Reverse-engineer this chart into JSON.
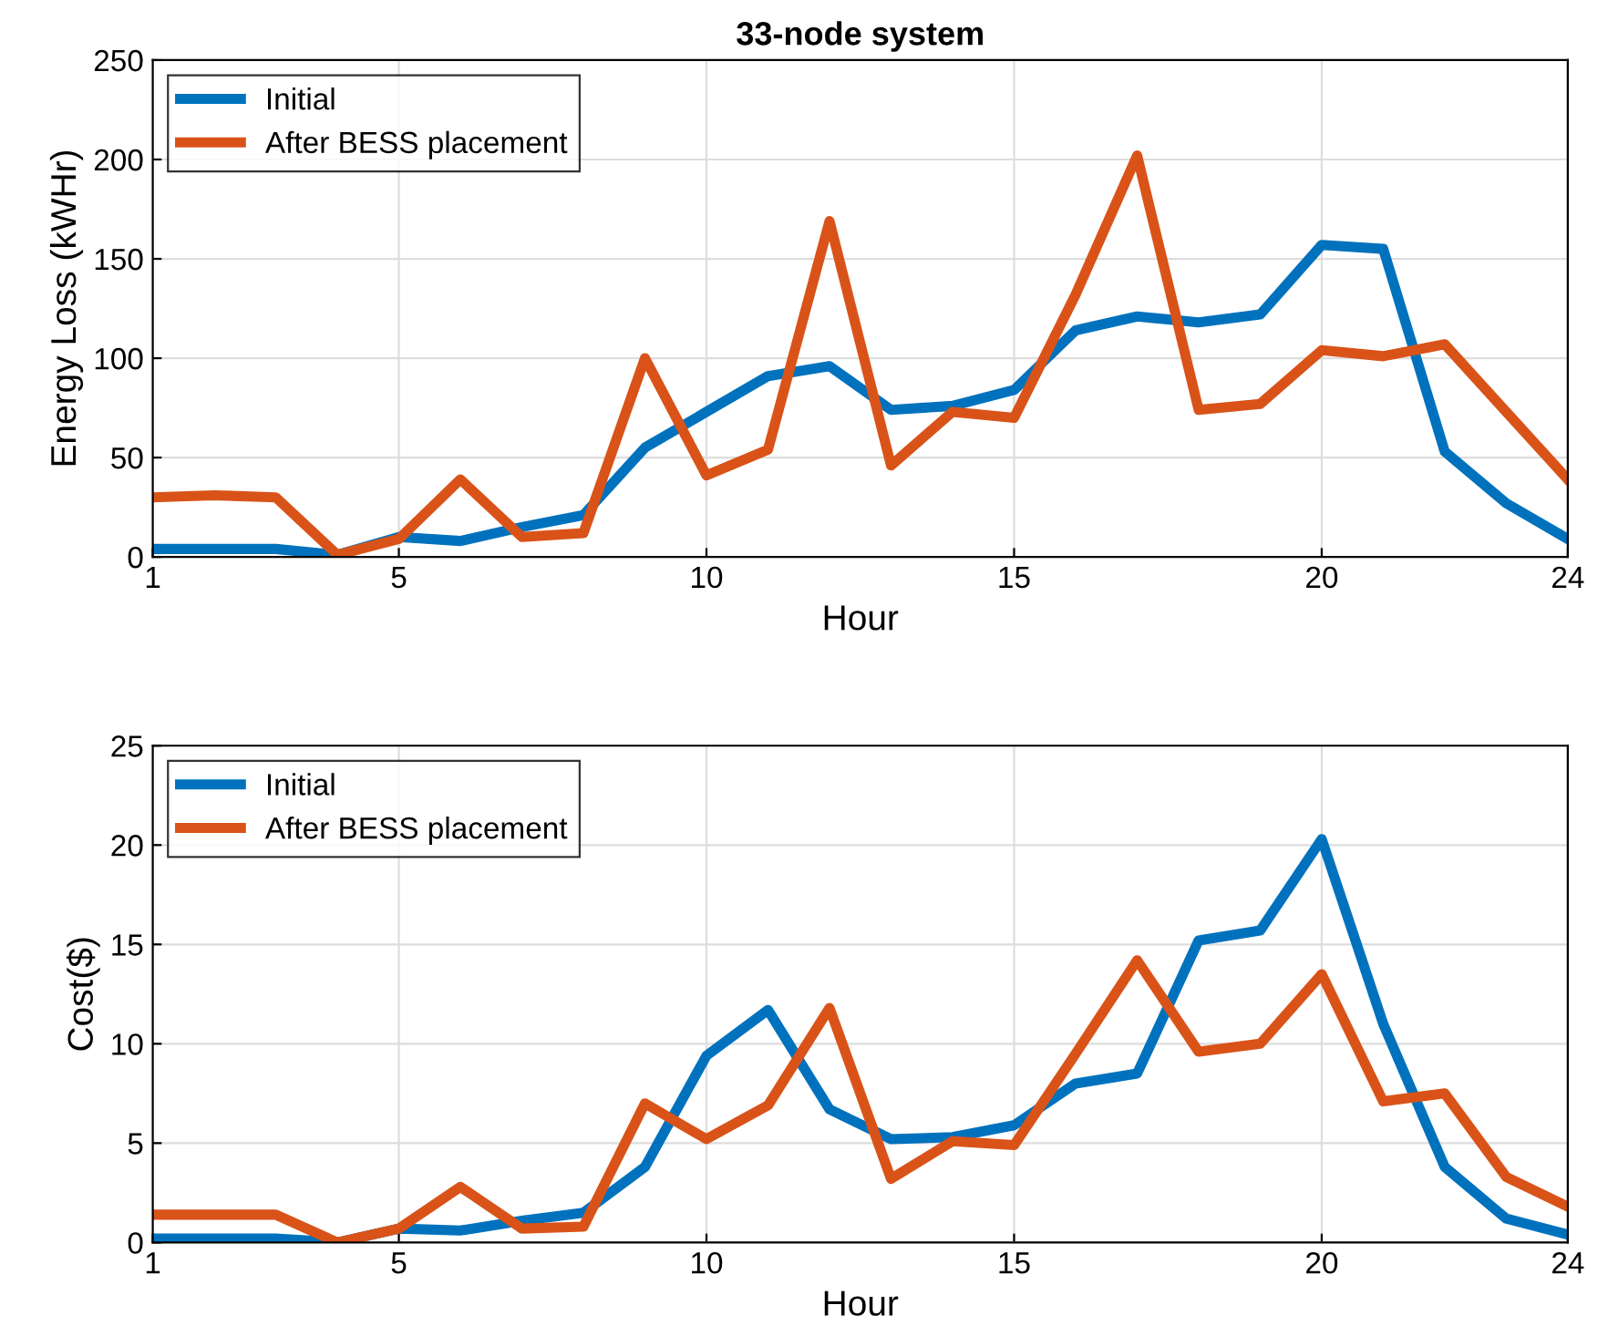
{
  "chart_data": [
    {
      "type": "line",
      "title": "33-node system",
      "xlabel": "Hour",
      "ylabel": "Energy Loss (kWHr)",
      "x": [
        1,
        2,
        3,
        4,
        5,
        6,
        7,
        8,
        9,
        10,
        11,
        12,
        13,
        14,
        15,
        16,
        17,
        18,
        19,
        20,
        21,
        22,
        23,
        24
      ],
      "series": [
        {
          "name": "Initial",
          "color": "#0072bd",
          "values": [
            4,
            4,
            4,
            1,
            10,
            8,
            15,
            21,
            55,
            73,
            91,
            96,
            74,
            76,
            84,
            114,
            121,
            118,
            122,
            157,
            155,
            53,
            27,
            9
          ]
        },
        {
          "name": "After BESS placement",
          "color": "#d95319",
          "values": [
            30,
            31,
            30,
            1,
            9,
            39,
            10,
            12,
            100,
            41,
            54,
            169,
            46,
            73,
            70,
            132,
            202,
            74,
            77,
            104,
            101,
            107,
            73,
            39
          ]
        }
      ],
      "xlim": [
        1,
        24
      ],
      "xticks": [
        1,
        5,
        10,
        15,
        20,
        24
      ],
      "ylim": [
        0,
        250
      ],
      "yticks": [
        0,
        50,
        100,
        150,
        200,
        250
      ],
      "grid": true,
      "legend": "top left",
      "line_style": "solid",
      "marker": "none"
    },
    {
      "type": "line",
      "xlabel": "Hour",
      "ylabel": "Cost($)",
      "x": [
        1,
        2,
        3,
        4,
        5,
        6,
        7,
        8,
        9,
        10,
        11,
        12,
        13,
        14,
        15,
        16,
        17,
        18,
        19,
        20,
        21,
        22,
        23,
        24
      ],
      "series": [
        {
          "name": "Initial",
          "color": "#0072bd",
          "values": [
            0.2,
            0.2,
            0.2,
            0,
            0.7,
            0.6,
            1.1,
            1.5,
            3.8,
            9.4,
            11.7,
            6.7,
            5.2,
            5.3,
            5.9,
            8.0,
            8.5,
            15.2,
            15.7,
            20.3,
            11.0,
            3.8,
            1.2,
            0.4
          ]
        },
        {
          "name": "After BESS placement",
          "color": "#d95319",
          "values": [
            1.4,
            1.4,
            1.4,
            0,
            0.7,
            2.8,
            0.7,
            0.8,
            7.0,
            5.2,
            6.9,
            11.8,
            3.2,
            5.1,
            4.9,
            9.5,
            14.2,
            9.6,
            10.0,
            13.5,
            7.1,
            7.5,
            3.3,
            1.8
          ]
        }
      ],
      "xlim": [
        1,
        24
      ],
      "xticks": [
        1,
        5,
        10,
        15,
        20,
        24
      ],
      "ylim": [
        0,
        25
      ],
      "yticks": [
        0,
        5,
        10,
        15,
        20,
        25
      ],
      "grid": true,
      "legend": "top left",
      "line_style": "solid",
      "marker": "none"
    }
  ]
}
